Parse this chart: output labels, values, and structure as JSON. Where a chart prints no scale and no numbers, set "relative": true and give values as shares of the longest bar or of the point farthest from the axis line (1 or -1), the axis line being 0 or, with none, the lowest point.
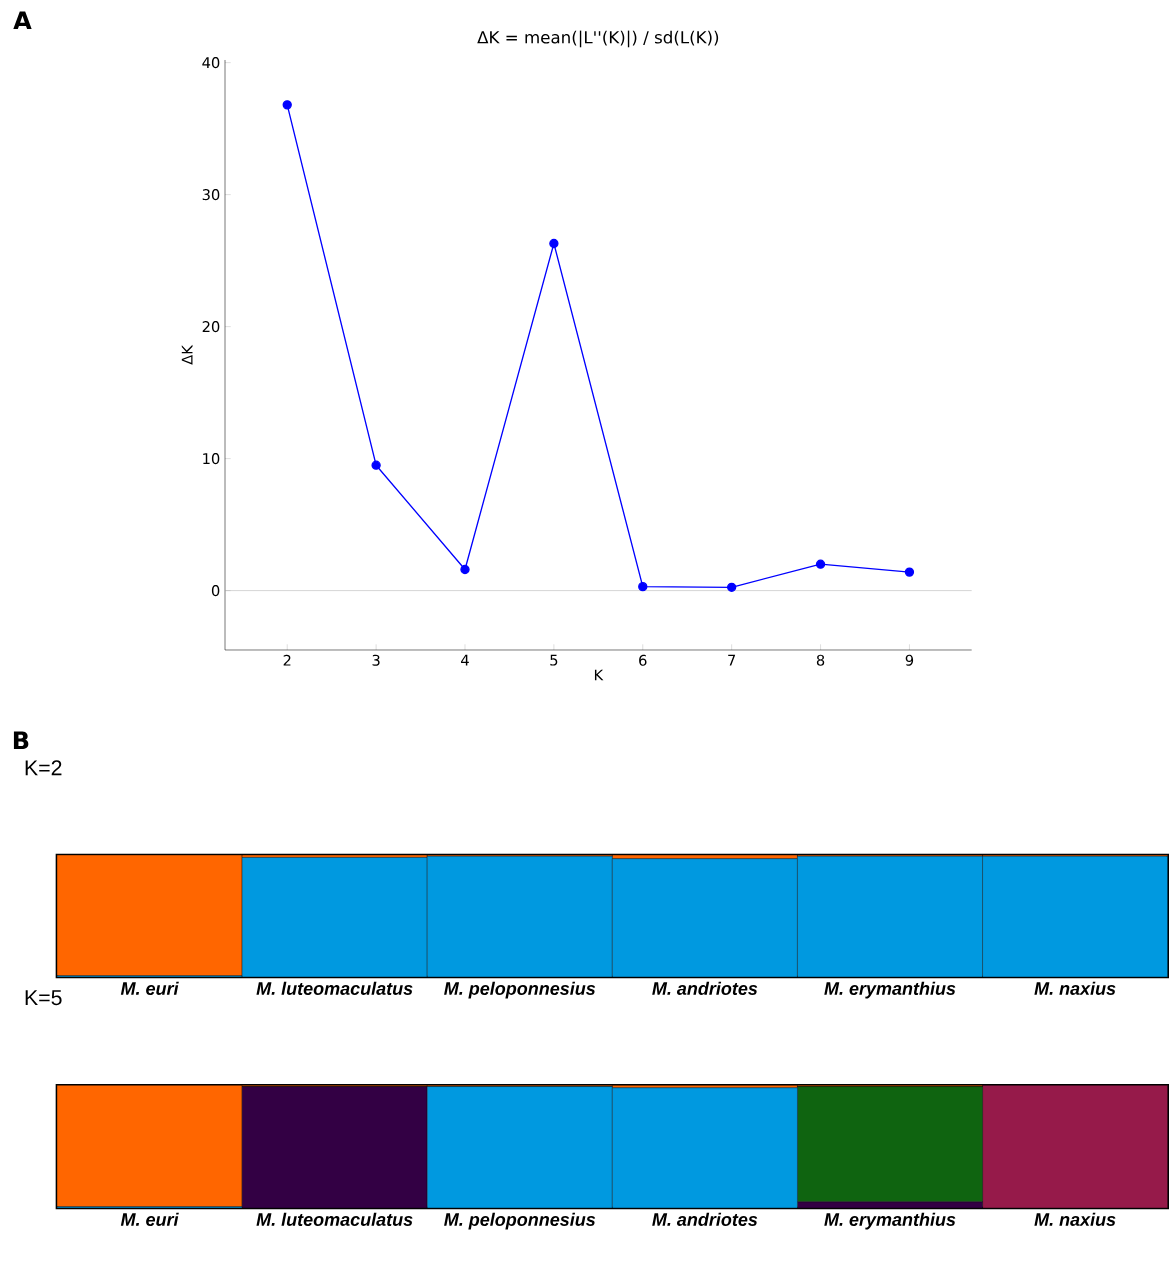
{
  "chart_data": [
    {
      "type": "line",
      "title": "ΔK = mean(|L''(K)|) / sd(L(K))",
      "xlabel": "K",
      "ylabel": "ΔK",
      "annotations": [
        "A"
      ],
      "x": [
        2,
        3,
        4,
        5,
        6,
        7,
        8,
        9
      ],
      "series": [
        {
          "color": "#0000ff",
          "values": [
            36.8,
            9.5,
            1.6,
            26.3,
            0.3,
            0.25,
            2.0,
            1.4
          ]
        }
      ],
      "marker": "circle",
      "line_style": "solid",
      "xlim": [
        1.3,
        9.7
      ],
      "ylim": [
        -4.5,
        40.2
      ],
      "xticks": [
        2,
        3,
        4,
        5,
        6,
        7,
        8,
        9
      ],
      "yticks": [
        0,
        10,
        20,
        30,
        40
      ],
      "ref_lines": [
        {
          "axis": "y",
          "value": 0,
          "color": "#b0b0b0"
        }
      ]
    },
    {
      "type": "bar",
      "title": "K=2",
      "annotations": [
        "B"
      ],
      "stacked": true,
      "relative": true,
      "categories": [
        "M. euri",
        "M. luteomaculatus",
        "M. peloponnesius",
        "M. andriotes",
        "M. erymanthius",
        "M. naxius"
      ],
      "series": [
        {
          "color": "#0099e0",
          "values": [
            0.01,
            0.98,
            0.99,
            0.97,
            0.99,
            0.99
          ]
        },
        {
          "color": "#ff6600",
          "values": [
            0.99,
            0.02,
            0.01,
            0.03,
            0.01,
            0.01
          ]
        }
      ]
    },
    {
      "type": "bar",
      "title": "K=5",
      "stacked": true,
      "relative": true,
      "categories": [
        "M. euri",
        "M. luteomaculatus",
        "M. peloponnesius",
        "M. andriotes",
        "M. erymanthius",
        "M. naxius"
      ],
      "series": [
        {
          "color": "#0099e0",
          "values": [
            0.01,
            0,
            0.99,
            0.98,
            0,
            0
          ]
        },
        {
          "color": "#330044",
          "values": [
            0,
            0.99,
            0,
            0,
            0.05,
            0
          ]
        },
        {
          "color": "#0f6410",
          "values": [
            0,
            0,
            0,
            0,
            0.94,
            0
          ]
        },
        {
          "color": "#961a4a",
          "values": [
            0,
            0,
            0,
            0,
            0,
            1
          ]
        },
        {
          "color": "#ff6600",
          "values": [
            0.99,
            0.01,
            0.01,
            0.02,
            0.01,
            0
          ]
        }
      ]
    }
  ]
}
